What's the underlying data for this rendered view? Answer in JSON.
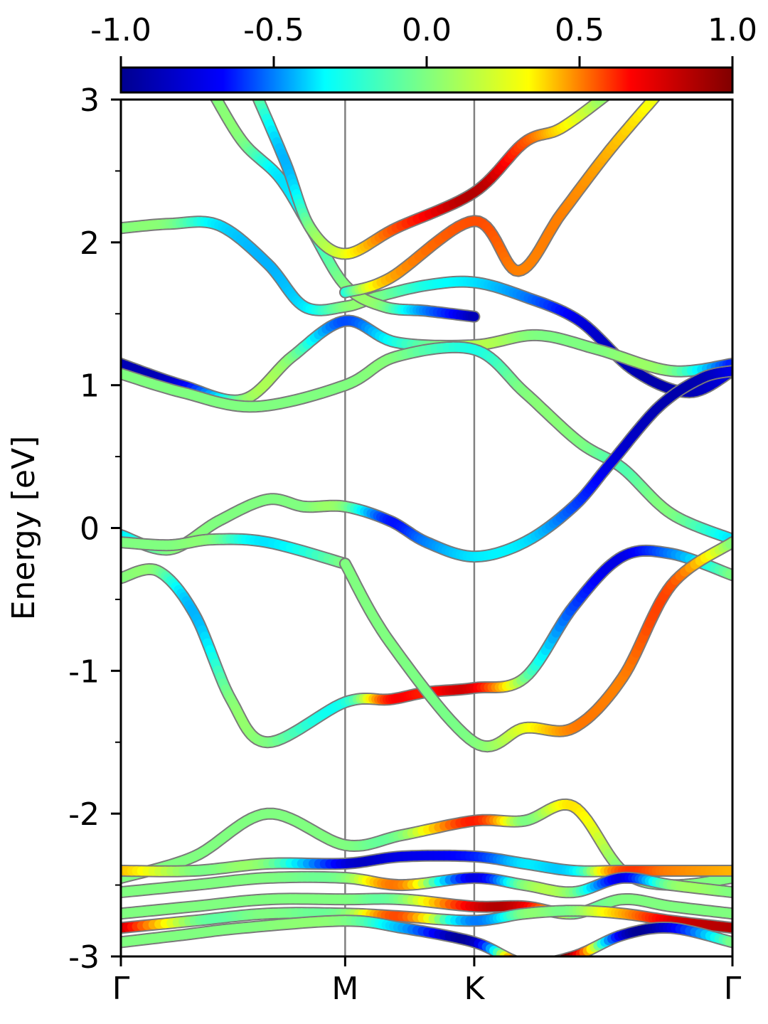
{
  "chart_data": {
    "type": "line",
    "title": "",
    "xlabel": "",
    "ylabel": "Energy [eV]",
    "ylim": [
      -3,
      3
    ],
    "y_ticks": [
      "3",
      "2",
      "1",
      "0",
      "-1",
      "-2",
      "-3"
    ],
    "y_tick_values": [
      3,
      2,
      1,
      0,
      -1,
      -2,
      -3
    ],
    "x_ticks": [
      "Γ",
      "M",
      "K",
      "Γ"
    ],
    "x_tick_positions": [
      0,
      0.3667,
      0.5778,
      1
    ],
    "colorbar": {
      "ticks": [
        "-1.0",
        "-0.5",
        "0.0",
        "0.5",
        "1.0"
      ],
      "tick_values": [
        -1.0,
        -0.5,
        0.0,
        0.5,
        1.0
      ],
      "range": [
        -1.0,
        1.0
      ],
      "colormap": "jet",
      "colors": [
        "#00008f",
        "#0000ff",
        "#00ffff",
        "#80ff80",
        "#ffff00",
        "#ff0000",
        "#800000"
      ]
    },
    "series": [
      {
        "x": [
          0,
          0.08,
          0.16,
          0.24,
          0.3,
          0.3667,
          0.42,
          0.5,
          0.5778,
          0.66,
          0.75,
          0.84,
          0.93,
          1.0
        ],
        "y": [
          2.1,
          2.13,
          2.12,
          1.85,
          1.55,
          1.55,
          1.62,
          1.7,
          1.72,
          1.62,
          1.45,
          1.1,
          0.95,
          1.1
        ],
        "c": [
          0.0,
          0.0,
          -0.3,
          -0.4,
          -0.3,
          0.0,
          0.0,
          -0.2,
          -0.3,
          -0.5,
          -0.8,
          -0.9,
          -0.9,
          -0.8
        ]
      },
      {
        "x": [
          0.15,
          0.2,
          0.26,
          0.31,
          0.3667,
          0.43,
          0.5,
          0.5778
        ],
        "y": [
          3.05,
          2.7,
          2.45,
          2.1,
          1.7,
          1.55,
          1.52,
          1.48
        ],
        "c": [
          0.0,
          0.0,
          -0.3,
          -0.2,
          0.0,
          0.0,
          -0.5,
          -0.9
        ]
      },
      {
        "x": [
          0.22,
          0.27,
          0.31,
          0.3667,
          0.45,
          0.5778,
          0.66,
          0.72,
          0.8
        ],
        "y": [
          3.05,
          2.55,
          2.1,
          1.92,
          2.1,
          2.35,
          2.7,
          2.8,
          3.05
        ],
        "c": [
          0.0,
          -0.4,
          0.0,
          0.2,
          0.6,
          0.9,
          0.6,
          0.3,
          0.0
        ]
      },
      {
        "x": [
          0.3667,
          0.44,
          0.5778,
          0.65,
          0.72,
          0.8,
          0.88
        ],
        "y": [
          1.65,
          1.75,
          2.15,
          1.8,
          2.2,
          2.65,
          3.05
        ],
        "c": [
          -0.2,
          0.4,
          0.6,
          0.5,
          0.5,
          0.4,
          0.2
        ]
      },
      {
        "x": [
          0,
          0.1,
          0.2,
          0.28,
          0.3667,
          0.45,
          0.5778,
          0.68,
          0.78,
          0.9,
          1.0
        ],
        "y": [
          1.15,
          1.0,
          0.9,
          1.2,
          1.45,
          1.3,
          1.28,
          1.35,
          1.25,
          1.1,
          1.15
        ],
        "c": [
          -0.9,
          -0.8,
          0.0,
          0.0,
          -0.6,
          -0.2,
          0.1,
          0.0,
          0.0,
          0.0,
          -0.7
        ]
      },
      {
        "x": [
          0,
          0.1,
          0.22,
          0.3667,
          0.45,
          0.5778,
          0.66,
          0.75,
          0.82,
          0.9,
          1.0
        ],
        "y": [
          1.08,
          0.95,
          0.85,
          1.0,
          1.2,
          1.25,
          0.95,
          0.6,
          0.42,
          0.1,
          -0.08
        ],
        "c": [
          0.0,
          0.0,
          0.0,
          0.0,
          0.0,
          -0.2,
          0.0,
          0.0,
          -0.1,
          0.0,
          -0.3
        ]
      },
      {
        "x": [
          0,
          0.08,
          0.16,
          0.24,
          0.3,
          0.3667,
          0.44,
          0.5,
          0.5778,
          0.66,
          0.74,
          0.8,
          0.88,
          0.95,
          1.0
        ],
        "y": [
          -0.05,
          -0.15,
          0.05,
          0.2,
          0.15,
          0.15,
          0.05,
          -0.1,
          -0.2,
          -0.1,
          0.15,
          0.45,
          0.85,
          1.05,
          1.1
        ],
        "c": [
          -0.3,
          0.0,
          0.0,
          0.0,
          0.0,
          0.0,
          -0.7,
          -0.5,
          -0.3,
          -0.3,
          -0.6,
          -0.8,
          -0.9,
          -0.9,
          -0.8
        ]
      },
      {
        "x": [
          0,
          0.08,
          0.15,
          0.24,
          0.3667
        ],
        "y": [
          -0.1,
          -0.12,
          -0.08,
          -0.1,
          -0.25
        ],
        "c": [
          0.0,
          0.0,
          0.0,
          -0.3,
          0.0
        ]
      },
      {
        "x": [
          0,
          0.06,
          0.12,
          0.18,
          0.24,
          0.3667,
          0.44,
          0.5,
          0.5778,
          0.66,
          0.74,
          0.82,
          0.9,
          1.0
        ],
        "y": [
          -0.35,
          -0.3,
          -0.6,
          -1.2,
          -1.5,
          -1.22,
          -1.2,
          -1.15,
          -1.12,
          -1.05,
          -0.55,
          -0.2,
          -0.18,
          -0.33
        ],
        "c": [
          0.0,
          0.0,
          -0.4,
          0.0,
          0.0,
          -0.2,
          0.7,
          0.7,
          0.8,
          0.0,
          -0.6,
          -0.8,
          -0.5,
          0.0
        ]
      },
      {
        "x": [
          0.3667,
          0.44,
          0.5778,
          0.66,
          0.74,
          0.82,
          0.9,
          1.0
        ],
        "y": [
          -0.25,
          -0.8,
          -1.5,
          -1.4,
          -1.4,
          -1.05,
          -0.4,
          -0.1
        ],
        "c": [
          0.0,
          0.0,
          0.0,
          0.2,
          0.5,
          0.5,
          0.6,
          0.0
        ]
      },
      {
        "x": [
          0,
          0.12,
          0.24,
          0.3667,
          0.46,
          0.5778,
          0.66,
          0.74,
          0.82,
          0.9,
          1.0
        ],
        "y": [
          -2.45,
          -2.3,
          -2.0,
          -2.22,
          -2.15,
          -2.05,
          -2.05,
          -1.95,
          -2.4,
          -2.5,
          -2.45
        ],
        "c": [
          0.0,
          0.0,
          0.0,
          0.0,
          0.0,
          0.7,
          0.0,
          0.3,
          0.0,
          0.0,
          0.0
        ]
      },
      {
        "x": [
          0,
          0.12,
          0.24,
          0.3667,
          0.46,
          0.5778,
          0.66,
          0.74,
          0.82,
          0.9,
          1.0
        ],
        "y": [
          -2.4,
          -2.4,
          -2.35,
          -2.35,
          -2.3,
          -2.3,
          -2.35,
          -2.4,
          -2.4,
          -2.4,
          -2.4
        ],
        "c": [
          0.4,
          0.0,
          0.0,
          -0.8,
          -0.8,
          -0.7,
          -0.3,
          -0.3,
          0.6,
          0.5,
          0.4
        ]
      },
      {
        "x": [
          0,
          0.12,
          0.24,
          0.3667,
          0.46,
          0.5778,
          0.66,
          0.74,
          0.82,
          0.9,
          1.0
        ],
        "y": [
          -2.55,
          -2.5,
          -2.45,
          -2.45,
          -2.5,
          -2.45,
          -2.5,
          -2.55,
          -2.45,
          -2.5,
          -2.55
        ],
        "c": [
          0.0,
          0.0,
          0.0,
          0.0,
          0.5,
          -0.8,
          0.0,
          0.0,
          -0.8,
          0.0,
          0.0
        ]
      },
      {
        "x": [
          0,
          0.12,
          0.24,
          0.3667,
          0.46,
          0.5778,
          0.66,
          0.74,
          0.82,
          0.9,
          1.0
        ],
        "y": [
          -2.7,
          -2.65,
          -2.6,
          -2.6,
          -2.6,
          -2.65,
          -2.65,
          -2.7,
          -2.6,
          -2.65,
          -2.7
        ],
        "c": [
          0.0,
          0.0,
          0.0,
          0.0,
          0.0,
          0.8,
          0.8,
          0.0,
          0.0,
          0.0,
          0.0
        ]
      },
      {
        "x": [
          0,
          0.12,
          0.24,
          0.3667,
          0.46,
          0.5778,
          0.66,
          0.74,
          0.82,
          0.9,
          1.0
        ],
        "y": [
          -2.8,
          -2.75,
          -2.7,
          -2.7,
          -2.72,
          -2.75,
          -2.7,
          -2.68,
          -2.7,
          -2.75,
          -2.8
        ],
        "c": [
          0.9,
          0.0,
          0.0,
          0.0,
          0.6,
          -0.5,
          0.0,
          0.0,
          0.4,
          0.8,
          0.9
        ]
      },
      {
        "x": [
          0,
          0.1,
          0.2,
          0.3667,
          0.46,
          0.5778,
          0.66,
          0.74,
          0.82,
          0.9,
          1.0
        ],
        "y": [
          -2.9,
          -2.85,
          -2.8,
          -2.75,
          -2.8,
          -2.9,
          -3.05,
          -3.0,
          -2.85,
          -2.8,
          -2.9
        ],
        "c": [
          0.0,
          0.0,
          0.0,
          0.0,
          -0.4,
          -0.9,
          0.9,
          0.9,
          -0.8,
          -0.8,
          0.0
        ]
      }
    ]
  }
}
